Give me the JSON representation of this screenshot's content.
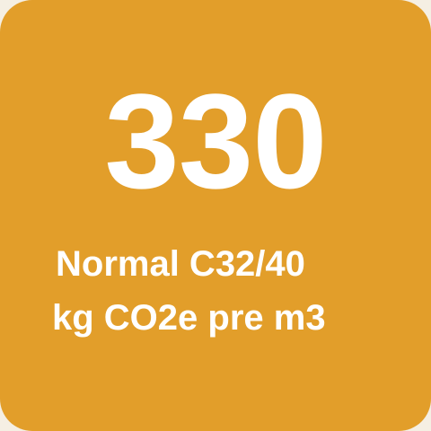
{
  "tile": {
    "value": "330",
    "line1": "Normal C32/40",
    "line2": "kg CO2e pre m3"
  },
  "colors": {
    "background": "#e29e2a",
    "text": "#ffffff"
  }
}
